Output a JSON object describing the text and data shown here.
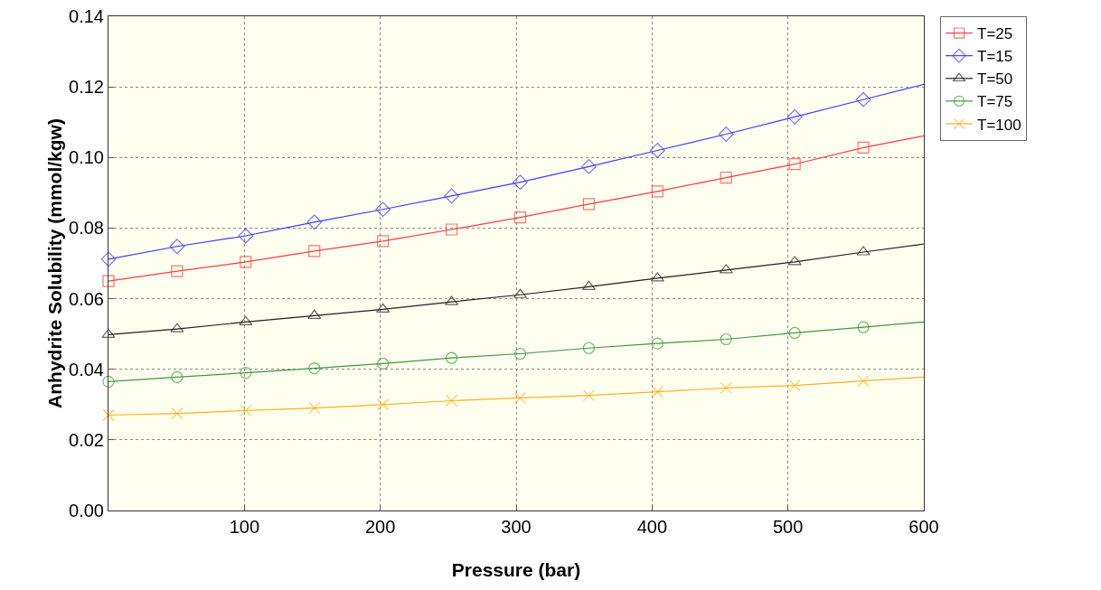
{
  "chart_data": {
    "type": "line",
    "xlabel": "Pressure (bar)",
    "ylabel": "Anhydrite Solubility (mmol/kgw)",
    "x": [
      0,
      50.5,
      101,
      151.5,
      202,
      252.5,
      303,
      353.5,
      404,
      454.5,
      505,
      555.5,
      600
    ],
    "series": [
      {
        "name": "T=25",
        "color": "#ff3b3b",
        "marker": "square",
        "values": [
          0.065,
          0.0678,
          0.0704,
          0.0735,
          0.0763,
          0.0796,
          0.083,
          0.0868,
          0.0904,
          0.0943,
          0.0981,
          0.1028,
          0.1061
        ]
      },
      {
        "name": "T=15",
        "color": "#3b3bff",
        "marker": "diamond",
        "values": [
          0.0712,
          0.0748,
          0.0778,
          0.0817,
          0.0853,
          0.0891,
          0.093,
          0.0974,
          0.102,
          0.1066,
          0.1115,
          0.1164,
          0.1207
        ]
      },
      {
        "name": "T=50",
        "color": "#202020",
        "marker": "triangle",
        "values": [
          0.0498,
          0.0514,
          0.0534,
          0.0552,
          0.057,
          0.0591,
          0.0611,
          0.0634,
          0.0658,
          0.0681,
          0.0704,
          0.0732,
          0.0755
        ]
      },
      {
        "name": "T=75",
        "color": "#3a9a3a",
        "marker": "circle",
        "values": [
          0.0365,
          0.0378,
          0.039,
          0.0403,
          0.0416,
          0.0432,
          0.0444,
          0.046,
          0.0473,
          0.0485,
          0.0503,
          0.0519,
          0.0534
        ]
      },
      {
        "name": "T=100",
        "color": "#ffb020",
        "marker": "cross",
        "values": [
          0.027,
          0.0275,
          0.0283,
          0.029,
          0.03,
          0.0311,
          0.0319,
          0.0326,
          0.0336,
          0.0347,
          0.0354,
          0.0367,
          0.0378
        ]
      }
    ],
    "xlim": [
      0,
      600
    ],
    "xticks": [
      100,
      200,
      300,
      400,
      500,
      600
    ],
    "ylim": [
      0,
      0.14
    ],
    "yticks": [
      {
        "value": 0,
        "label": "0.00"
      },
      {
        "value": 0.02,
        "label": "0.02"
      },
      {
        "value": 0.04,
        "label": "0.04"
      },
      {
        "value": 0.06,
        "label": "0.06"
      },
      {
        "value": 0.08,
        "label": "0.08"
      },
      {
        "value": 0.1,
        "label": "0.10"
      },
      {
        "value": 0.12,
        "label": "0.12"
      },
      {
        "value": 0.14,
        "label": "0.14"
      }
    ],
    "grid": true,
    "legend": "top right",
    "line_style": "solid"
  }
}
